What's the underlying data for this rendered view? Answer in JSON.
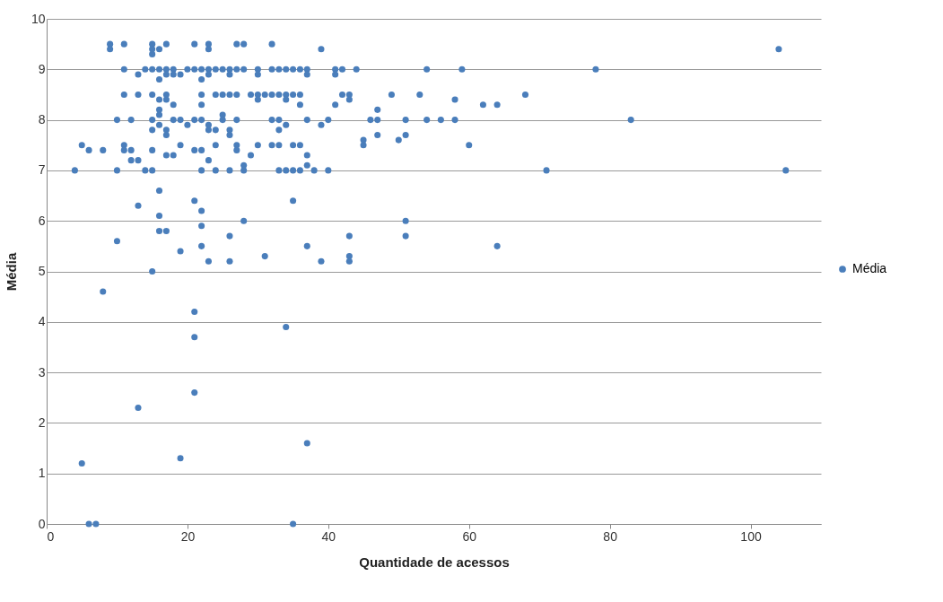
{
  "chart_data": {
    "type": "scatter",
    "xlabel": "Quantidade de acessos",
    "ylabel": "Média",
    "xlim": [
      0,
      110
    ],
    "xticks": [
      0,
      20,
      40,
      60,
      80,
      100
    ],
    "ylim": [
      0,
      10
    ],
    "yticks": [
      0,
      1,
      2,
      3,
      4,
      5,
      6,
      7,
      8,
      9,
      10
    ],
    "grid": "y",
    "legend": "right",
    "marker": "circle",
    "series": [
      {
        "name": "Média",
        "color": "#4a7ebb",
        "x": [
          5,
          6,
          7,
          8,
          13,
          15,
          19,
          19,
          21,
          21,
          21,
          34,
          35,
          37,
          10,
          13,
          4,
          10,
          14,
          15,
          22,
          24,
          26,
          28,
          33,
          34,
          35,
          36,
          38,
          40,
          71,
          105,
          5,
          6,
          8,
          11,
          11,
          12,
          15,
          17,
          18,
          21,
          22,
          24,
          27,
          27,
          28,
          29,
          30,
          32,
          33,
          35,
          36,
          37,
          37,
          12,
          13,
          19,
          23,
          45,
          45,
          47,
          50,
          51,
          60,
          10,
          12,
          15,
          16,
          16,
          17,
          18,
          19,
          21,
          22,
          24,
          25,
          25,
          26,
          27,
          32,
          33,
          34,
          37,
          39,
          40,
          46,
          47,
          47,
          51,
          54,
          56,
          58,
          83,
          15,
          16,
          17,
          20,
          23,
          23,
          26,
          33,
          16,
          17,
          18,
          22,
          11,
          13,
          15,
          17,
          22,
          24,
          25,
          26,
          27,
          29,
          30,
          31,
          32,
          33,
          34,
          35,
          36,
          30,
          34,
          36,
          41,
          42,
          43,
          43,
          49,
          53,
          58,
          62,
          64,
          68,
          11,
          13,
          14,
          15,
          16,
          17,
          18,
          18,
          19,
          20,
          21,
          22,
          22,
          23,
          24,
          25,
          26,
          26,
          27,
          28,
          30,
          30,
          32,
          33,
          34,
          35,
          36,
          37,
          37,
          41,
          41,
          42,
          44,
          54,
          59,
          78,
          15,
          16,
          17,
          23,
          9,
          9,
          11,
          15,
          15,
          16,
          17,
          21,
          23,
          23,
          27,
          28,
          32,
          39,
          104,
          16,
          16,
          16,
          17,
          21,
          22,
          22,
          22,
          23,
          26,
          26,
          28,
          31,
          35,
          37,
          39,
          43,
          43,
          43,
          51,
          51,
          64
        ],
        "values": [
          1.2,
          0,
          0,
          4.6,
          2.3,
          5.0,
          1.3,
          5.4,
          4.2,
          3.7,
          2.6,
          3.9,
          0,
          1.6,
          5.6,
          6.3,
          7,
          7,
          7,
          7,
          7,
          7,
          7,
          7,
          7,
          7,
          7,
          7,
          7,
          7,
          7,
          7,
          7.5,
          7.4,
          7.4,
          7.5,
          7.4,
          7.4,
          7.4,
          7.3,
          7.3,
          7.4,
          7.4,
          7.5,
          7.5,
          7.4,
          7.1,
          7.3,
          7.5,
          7.5,
          7.5,
          7.5,
          7.5,
          7.3,
          7.1,
          7.2,
          7.2,
          7.5,
          7.2,
          7.5,
          7.6,
          7.7,
          7.6,
          7.7,
          7.5,
          8,
          8,
          8,
          8.1,
          8.2,
          7.8,
          8,
          8,
          8,
          8,
          7.8,
          8,
          8.1,
          7.8,
          8,
          8,
          8,
          7.9,
          8,
          7.9,
          8,
          8,
          8,
          8.2,
          8,
          8,
          8,
          8,
          8,
          7.8,
          7.9,
          7.7,
          7.9,
          7.9,
          7.8,
          7.7,
          7.8,
          8.4,
          8.4,
          8.3,
          8.3,
          8.5,
          8.5,
          8.5,
          8.5,
          8.5,
          8.5,
          8.5,
          8.5,
          8.5,
          8.5,
          8.5,
          8.5,
          8.5,
          8.5,
          8.5,
          8.5,
          8.5,
          8.4,
          8.4,
          8.3,
          8.3,
          8.5,
          8.5,
          8.4,
          8.5,
          8.5,
          8.4,
          8.3,
          8.3,
          8.5,
          9,
          8.9,
          9,
          9,
          9,
          9,
          9,
          8.9,
          8.9,
          9,
          9,
          9,
          8.8,
          9,
          9,
          9,
          9,
          8.9,
          9,
          9,
          9,
          8.9,
          9,
          9,
          9,
          9,
          9,
          9,
          8.9,
          9,
          8.9,
          9,
          9,
          9,
          9,
          9,
          9.3,
          8.8,
          8.9,
          8.9,
          9.5,
          9.4,
          9.5,
          9.5,
          9.4,
          9.4,
          9.5,
          9.5,
          9.5,
          9.4,
          9.5,
          9.5,
          9.5,
          9.4,
          9.4,
          6.6,
          6.1,
          5.8,
          5.8,
          6.4,
          6.2,
          5.9,
          5.5,
          5.2,
          5.7,
          5.2,
          6.0,
          5.3,
          6.4,
          5.5,
          5.2,
          5.7,
          5.3,
          5.2,
          6.0,
          5.7,
          5.5
        ]
      }
    ]
  }
}
